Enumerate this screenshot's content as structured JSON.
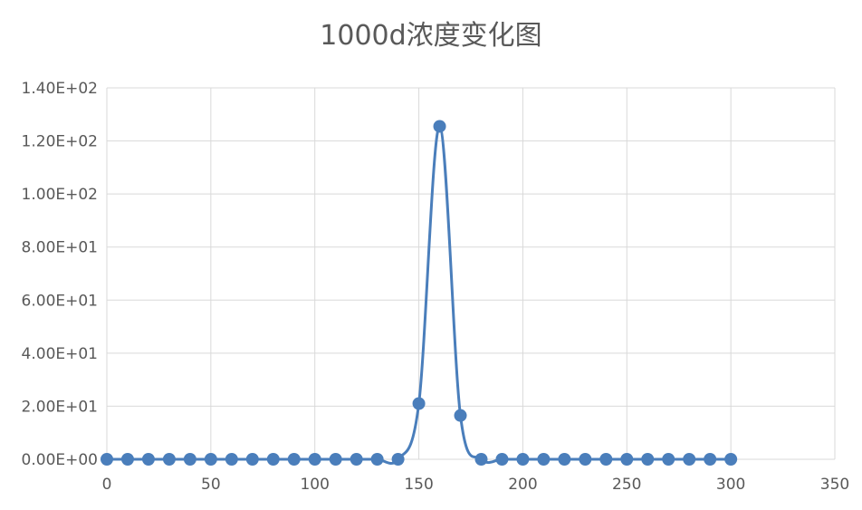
{
  "chart_data": {
    "type": "line",
    "title": "1000d浓度变化图",
    "xlabel": "",
    "ylabel": "",
    "xlim": [
      0,
      350
    ],
    "ylim": [
      0,
      140
    ],
    "x_ticks": [
      0,
      50,
      100,
      150,
      200,
      250,
      300,
      350
    ],
    "x_tick_labels": [
      "0",
      "50",
      "100",
      "150",
      "200",
      "250",
      "300",
      "350"
    ],
    "y_ticks": [
      0,
      20,
      40,
      60,
      80,
      100,
      120,
      140
    ],
    "y_tick_labels": [
      "0.00E+00",
      "2.00E+01",
      "4.00E+01",
      "6.00E+01",
      "8.00E+01",
      "1.00E+02",
      "1.20E+02",
      "1.40E+02"
    ],
    "grid": true,
    "legend": "none",
    "smooth": true,
    "color": "#4a7ebb",
    "series": [
      {
        "x": [
          0,
          10,
          20,
          30,
          40,
          50,
          60,
          70,
          80,
          90,
          100,
          110,
          120,
          130,
          140,
          150,
          160,
          170,
          180,
          190,
          200,
          210,
          220,
          230,
          240,
          250,
          260,
          270,
          280,
          290,
          300
        ],
        "values": [
          0,
          0,
          0,
          0,
          0,
          0,
          0,
          0,
          0,
          0,
          0,
          0,
          0,
          0,
          0,
          21,
          125.5,
          16.5,
          0,
          0,
          0,
          0,
          0,
          0,
          0,
          0,
          0,
          0,
          0,
          0,
          0
        ]
      }
    ]
  }
}
